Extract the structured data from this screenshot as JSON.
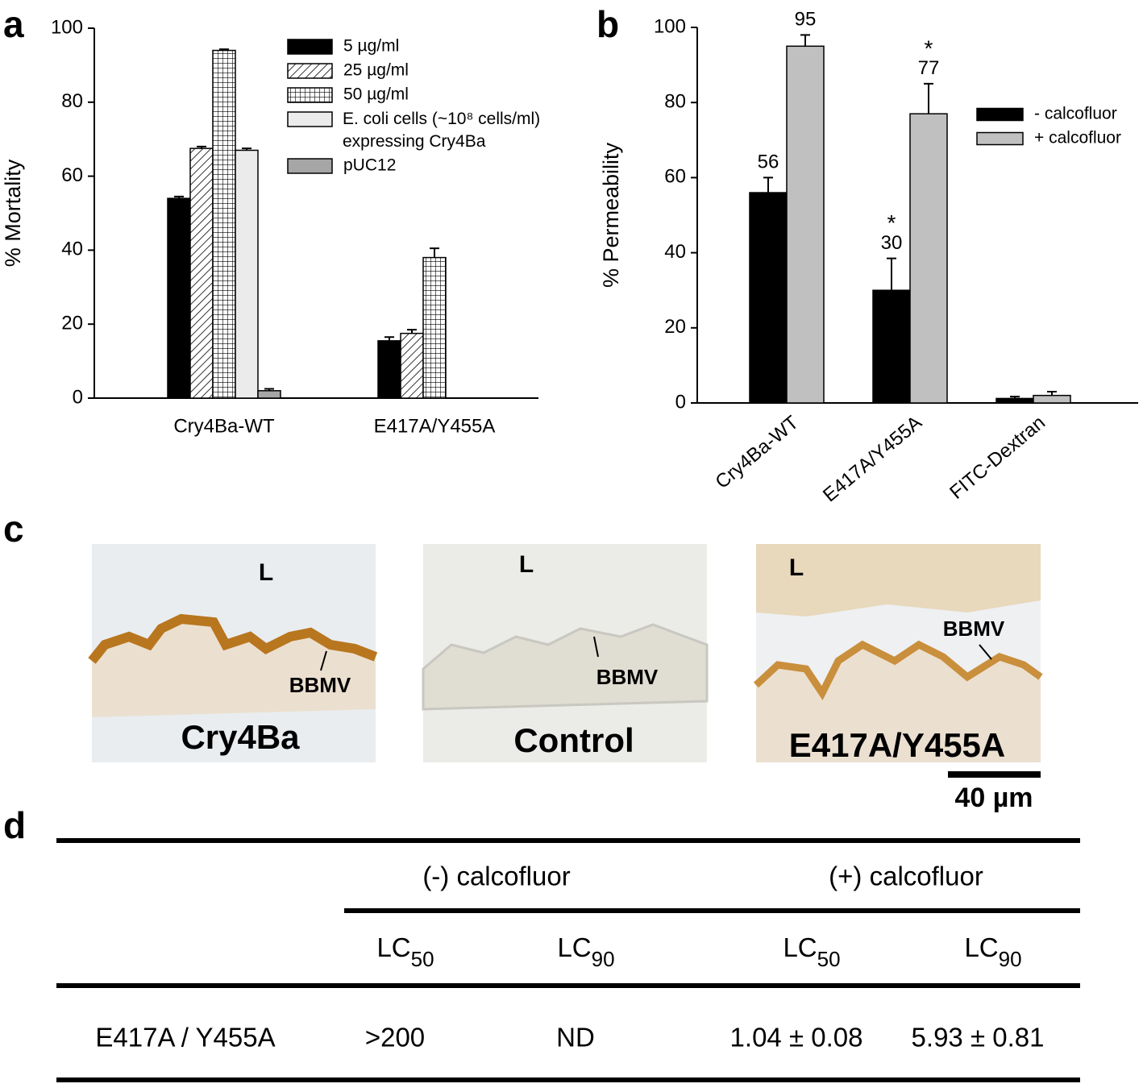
{
  "chart_data": [
    {
      "type": "bar",
      "panel_label": "a",
      "ylabel": "% Mortality",
      "categories": [
        "Cry4Ba-WT",
        "E417A/Y455A"
      ],
      "series": [
        {
          "name": "5 µg/ml",
          "color": "#000000",
          "values": [
            54,
            15.5
          ],
          "errors": [
            0.5,
            1
          ]
        },
        {
          "name": "25 µg/ml",
          "color": "#ffffff",
          "pattern": "diagonal",
          "values": [
            67.5,
            17.5
          ],
          "errors": [
            0.5,
            1
          ]
        },
        {
          "name": "50 µg/ml",
          "color": "#ffffff",
          "pattern": "grid",
          "values": [
            94,
            38
          ],
          "errors": [
            0.3,
            2.5
          ]
        },
        {
          "name": "E. coli cells (~10⁸ cells/ml) expressing Cry4Ba",
          "color": "#ebebeb",
          "values": [
            67,
            null
          ],
          "errors": [
            0.5,
            null
          ]
        },
        {
          "name": "pUC12",
          "color": "#a6a6a6",
          "values": [
            2,
            null
          ],
          "errors": [
            0.5,
            null
          ]
        }
      ],
      "ylim": [
        0,
        100
      ],
      "yticks": [
        0,
        20,
        40,
        60,
        80,
        100
      ],
      "legend": "top-right"
    },
    {
      "type": "bar",
      "panel_label": "b",
      "ylabel": "% Permeability",
      "categories": [
        "Cry4Ba-WT",
        "E417A/Y455A",
        "FITC-Dextran"
      ],
      "series": [
        {
          "name": "- calcofluor",
          "color": "#000000",
          "values": [
            56,
            30,
            1.2
          ],
          "errors": [
            4,
            8.5,
            0.5
          ],
          "value_labels": [
            "56",
            "30",
            null
          ],
          "markers": [
            null,
            "*",
            null
          ]
        },
        {
          "name": "+ calcofluor",
          "color": "#c0c0c0",
          "values": [
            95,
            77,
            2
          ],
          "errors": [
            3,
            8,
            1
          ],
          "value_labels": [
            "95",
            "77",
            null
          ],
          "markers": [
            null,
            "*",
            null
          ]
        }
      ],
      "ylim": [
        0,
        100
      ],
      "yticks": [
        0,
        20,
        40,
        60,
        80,
        100
      ],
      "legend": "top-right"
    }
  ],
  "micrographs": {
    "panel_label": "c",
    "items": [
      {
        "lumen": "L",
        "bbmv": "BBMV",
        "caption": "Cry4Ba"
      },
      {
        "lumen": "L",
        "bbmv": "BBMV",
        "caption": "Control"
      },
      {
        "lumen": "L",
        "bbmv": "BBMV",
        "caption": "E417A/Y455A"
      }
    ],
    "scale_bar": "40 µm"
  },
  "table": {
    "panel_label": "d",
    "groups": [
      "(-) calcofluor",
      "(+) calcofluor"
    ],
    "columns": [
      {
        "base": "LC",
        "sub": "50"
      },
      {
        "base": "LC",
        "sub": "90"
      },
      {
        "base": "LC",
        "sub": "50"
      },
      {
        "base": "LC",
        "sub": "90"
      }
    ],
    "rows": [
      [
        "E417A / Y455A",
        ">200",
        "ND",
        "1.04 ± 0.08",
        "5.93 ± 0.81"
      ]
    ]
  }
}
